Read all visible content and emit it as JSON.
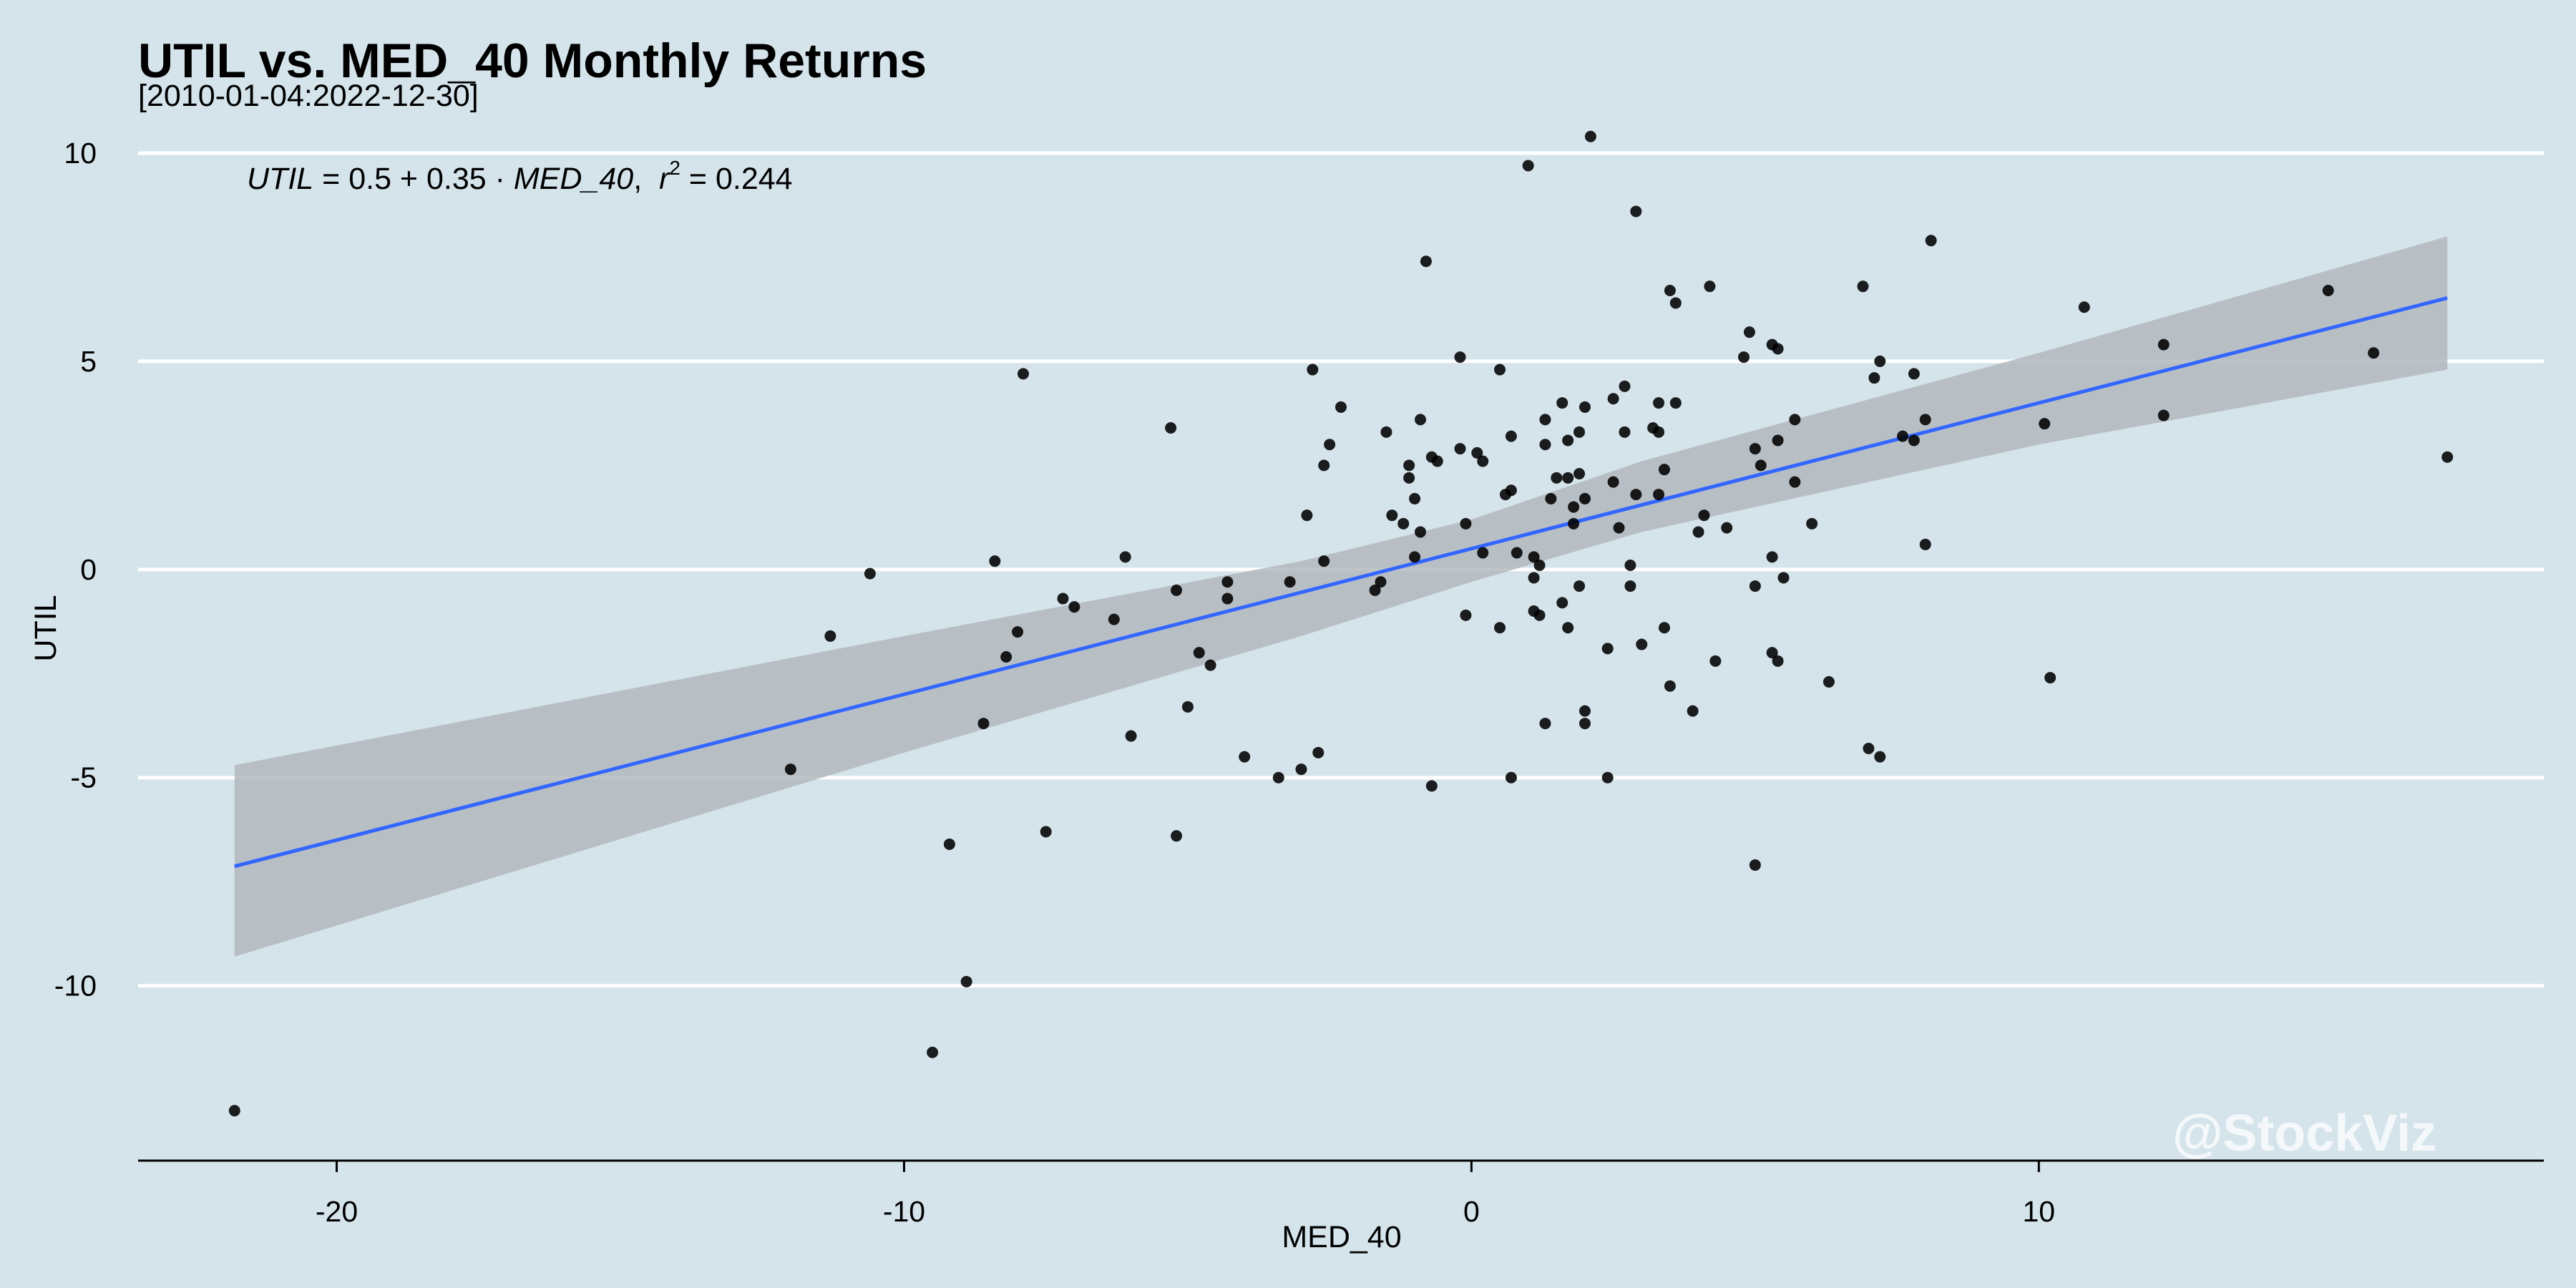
{
  "chart_data": {
    "type": "scatter",
    "title": "UTIL vs. MED_40 Monthly Returns",
    "subtitle": "[2010-01-04:2022-12-30]",
    "xlabel": "MED_40",
    "ylabel": "UTIL",
    "xlim": [
      -23.5,
      18.9
    ],
    "ylim": [
      -14.2,
      11.1
    ],
    "x_ticks": [
      -20,
      -10,
      0,
      10
    ],
    "y_ticks": [
      10,
      5,
      0,
      -5,
      -10
    ],
    "x_tick_labels": [
      "-20",
      "-10",
      "0",
      "10"
    ],
    "y_tick_labels": [
      "10",
      "5",
      "0",
      "-5",
      "-10"
    ],
    "grid": "horizontal major lines",
    "annotation": {
      "lhs": "UTIL",
      "eq_sign": " = ",
      "intercept": "0.5",
      "plus": " + ",
      "slope": "0.35",
      "dot": " · ",
      "var": "MED_40",
      "comma": ",  ",
      "r": "r",
      "sup": "2",
      "r2_text": " = 0.244"
    },
    "regression": {
      "intercept": 0.5,
      "slope": 0.35,
      "r2": 0.244,
      "x_range": [
        -21.8,
        17.2
      ]
    },
    "confidence_band": {
      "x": [
        -21.8,
        -10,
        -3,
        0,
        3,
        10,
        17.2
      ],
      "lower": [
        -9.3,
        -4.4,
        -1.6,
        -0.3,
        0.9,
        3.0,
        4.8
      ],
      "upper": [
        -4.7,
        -1.6,
        0.2,
        1.2,
        2.6,
        5.2,
        8.0
      ]
    },
    "points": [
      [
        -21.8,
        -13.0
      ],
      [
        -12.0,
        -4.8
      ],
      [
        -11.3,
        -1.6
      ],
      [
        -10.6,
        -0.1
      ],
      [
        -9.5,
        -11.6
      ],
      [
        -9.2,
        -6.6
      ],
      [
        -8.9,
        -9.9
      ],
      [
        -8.6,
        -3.7
      ],
      [
        -8.4,
        0.2
      ],
      [
        -8.2,
        -2.1
      ],
      [
        -8.0,
        -1.5
      ],
      [
        -7.9,
        4.7
      ],
      [
        -7.5,
        -6.3
      ],
      [
        -7.2,
        -0.7
      ],
      [
        -7.0,
        -0.9
      ],
      [
        -6.3,
        -1.2
      ],
      [
        -6.1,
        0.3
      ],
      [
        -6.0,
        -4.0
      ],
      [
        -5.3,
        3.4
      ],
      [
        -5.2,
        -6.4
      ],
      [
        -5.2,
        -0.5
      ],
      [
        -5.0,
        -3.3
      ],
      [
        -4.8,
        -2.0
      ],
      [
        -4.6,
        -2.3
      ],
      [
        -4.3,
        -0.7
      ],
      [
        -4.3,
        -0.3
      ],
      [
        -4.0,
        -4.5
      ],
      [
        -3.4,
        -5.0
      ],
      [
        -3.2,
        -0.3
      ],
      [
        -3.0,
        -4.8
      ],
      [
        -2.9,
        1.3
      ],
      [
        -2.8,
        4.8
      ],
      [
        -2.7,
        -4.4
      ],
      [
        -2.6,
        0.2
      ],
      [
        -2.6,
        2.5
      ],
      [
        -2.5,
        3.0
      ],
      [
        -2.3,
        3.9
      ],
      [
        -1.7,
        -0.5
      ],
      [
        -1.6,
        -0.3
      ],
      [
        -1.5,
        3.3
      ],
      [
        -1.4,
        1.3
      ],
      [
        -1.2,
        1.1
      ],
      [
        -1.1,
        2.5
      ],
      [
        -1.1,
        2.2
      ],
      [
        -1.0,
        0.3
      ],
      [
        -1.0,
        1.7
      ],
      [
        -0.9,
        0.9
      ],
      [
        -0.9,
        3.6
      ],
      [
        -0.8,
        7.4
      ],
      [
        -0.7,
        -5.2
      ],
      [
        -0.7,
        2.7
      ],
      [
        -0.6,
        2.6
      ],
      [
        -0.2,
        5.1
      ],
      [
        -0.2,
        2.9
      ],
      [
        -0.1,
        1.1
      ],
      [
        -0.1,
        -1.1
      ],
      [
        0.1,
        2.8
      ],
      [
        0.2,
        2.6
      ],
      [
        0.2,
        0.4
      ],
      [
        0.5,
        4.8
      ],
      [
        0.5,
        -1.4
      ],
      [
        0.6,
        1.8
      ],
      [
        0.7,
        3.2
      ],
      [
        0.7,
        1.9
      ],
      [
        0.7,
        -5.0
      ],
      [
        0.8,
        0.4
      ],
      [
        1.0,
        9.7
      ],
      [
        1.1,
        0.3
      ],
      [
        1.1,
        -0.2
      ],
      [
        1.1,
        -1.0
      ],
      [
        1.2,
        -1.1
      ],
      [
        1.2,
        0.1
      ],
      [
        1.3,
        -3.7
      ],
      [
        1.3,
        3.0
      ],
      [
        1.3,
        3.6
      ],
      [
        1.4,
        1.7
      ],
      [
        1.5,
        2.2
      ],
      [
        1.6,
        4.0
      ],
      [
        1.6,
        -0.8
      ],
      [
        1.7,
        -1.4
      ],
      [
        1.7,
        2.2
      ],
      [
        1.7,
        3.1
      ],
      [
        1.8,
        1.5
      ],
      [
        1.8,
        1.1
      ],
      [
        1.9,
        2.3
      ],
      [
        1.9,
        -0.4
      ],
      [
        1.9,
        3.3
      ],
      [
        2.0,
        -3.4
      ],
      [
        2.0,
        -3.7
      ],
      [
        2.0,
        1.7
      ],
      [
        2.0,
        3.9
      ],
      [
        2.1,
        10.4
      ],
      [
        2.4,
        -5.0
      ],
      [
        2.4,
        -1.9
      ],
      [
        2.5,
        4.1
      ],
      [
        2.5,
        2.1
      ],
      [
        2.6,
        1.0
      ],
      [
        2.7,
        3.3
      ],
      [
        2.7,
        4.4
      ],
      [
        2.8,
        0.1
      ],
      [
        2.8,
        -0.4
      ],
      [
        2.9,
        1.8
      ],
      [
        2.9,
        8.6
      ],
      [
        3.0,
        -1.8
      ],
      [
        3.2,
        3.4
      ],
      [
        3.3,
        3.3
      ],
      [
        3.3,
        1.8
      ],
      [
        3.3,
        4.0
      ],
      [
        3.4,
        2.4
      ],
      [
        3.4,
        -1.4
      ],
      [
        3.5,
        6.7
      ],
      [
        3.5,
        -2.8
      ],
      [
        3.6,
        4.0
      ],
      [
        3.6,
        6.4
      ],
      [
        3.9,
        -3.4
      ],
      [
        4.0,
        0.9
      ],
      [
        4.1,
        1.3
      ],
      [
        4.2,
        6.8
      ],
      [
        4.3,
        -2.2
      ],
      [
        4.5,
        1.0
      ],
      [
        4.8,
        5.1
      ],
      [
        4.9,
        5.7
      ],
      [
        5.0,
        2.9
      ],
      [
        5.0,
        -7.1
      ],
      [
        5.0,
        -0.4
      ],
      [
        5.1,
        2.5
      ],
      [
        5.3,
        5.4
      ],
      [
        5.3,
        0.3
      ],
      [
        5.3,
        -2.0
      ],
      [
        5.4,
        5.3
      ],
      [
        5.4,
        3.1
      ],
      [
        5.4,
        -2.2
      ],
      [
        5.5,
        -0.2
      ],
      [
        5.7,
        3.6
      ],
      [
        5.7,
        2.1
      ],
      [
        6.0,
        1.1
      ],
      [
        6.3,
        -2.7
      ],
      [
        6.9,
        6.8
      ],
      [
        7.0,
        -4.3
      ],
      [
        7.1,
        4.6
      ],
      [
        7.2,
        -4.5
      ],
      [
        7.2,
        5.0
      ],
      [
        7.6,
        3.2
      ],
      [
        7.8,
        4.7
      ],
      [
        7.8,
        3.1
      ],
      [
        8.0,
        0.6
      ],
      [
        8.0,
        3.6
      ],
      [
        8.1,
        7.9
      ],
      [
        10.1,
        3.5
      ],
      [
        10.2,
        -2.6
      ],
      [
        10.8,
        6.3
      ],
      [
        12.2,
        5.4
      ],
      [
        12.2,
        3.7
      ],
      [
        15.1,
        6.7
      ],
      [
        15.9,
        5.2
      ],
      [
        17.2,
        2.7
      ]
    ],
    "watermark": "@StockViz",
    "colors": {
      "background": "#d5e4eb",
      "grid": "#ffffff",
      "points": "#000000",
      "line": "#3366ff",
      "band": "#b3b9bd",
      "axis": "#000000"
    }
  }
}
